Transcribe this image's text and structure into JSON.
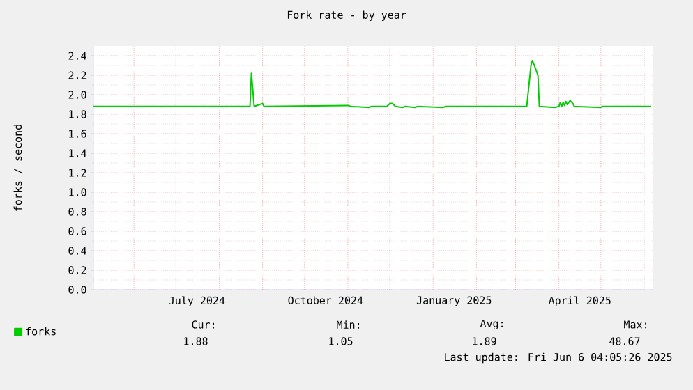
{
  "chart_data": {
    "type": "line",
    "title": "Fork rate - by year",
    "ylabel": "forks / second",
    "x": [
      "2024-05-03",
      "2024-08-23",
      "2024-08-24",
      "2024-08-26",
      "2024-09-01",
      "2024-09-02",
      "2024-11-01",
      "2024-11-03",
      "2024-11-16",
      "2024-11-18",
      "2024-11-29",
      "2024-12-01",
      "2024-12-03",
      "2024-12-05",
      "2024-12-10",
      "2024-12-12",
      "2024-12-19",
      "2024-12-21",
      "2025-01-08",
      "2025-01-10",
      "2025-03-09",
      "2025-03-12",
      "2025-03-13",
      "2025-03-15",
      "2025-03-17",
      "2025-03-18",
      "2025-03-29",
      "2025-04-01",
      "2025-04-02",
      "2025-04-03",
      "2025-04-04",
      "2025-04-05",
      "2025-04-06",
      "2025-04-07",
      "2025-04-09",
      "2025-04-11",
      "2025-04-12",
      "2025-05-01",
      "2025-05-02",
      "2025-06-06"
    ],
    "series": [
      {
        "name": "forks",
        "color": "#00cc00",
        "values": [
          1.88,
          1.88,
          2.22,
          1.88,
          1.91,
          1.88,
          1.89,
          1.88,
          1.87,
          1.88,
          1.88,
          1.91,
          1.91,
          1.88,
          1.87,
          1.88,
          1.87,
          1.88,
          1.87,
          1.88,
          1.88,
          2.3,
          2.35,
          2.28,
          2.2,
          1.88,
          1.87,
          1.88,
          1.92,
          1.88,
          1.92,
          1.89,
          1.93,
          1.9,
          1.94,
          1.91,
          1.88,
          1.87,
          1.88,
          1.88
        ]
      }
    ],
    "xlim": [
      "2024-05-03",
      "2025-06-07"
    ],
    "xticks": [
      {
        "value": "2024-06-01",
        "label": null
      },
      {
        "value": "2024-07-01",
        "label": null
      },
      {
        "value": "2024-07-16",
        "label": "July 2024"
      },
      {
        "value": "2024-08-01",
        "label": null
      },
      {
        "value": "2024-09-01",
        "label": null
      },
      {
        "value": "2024-10-01",
        "label": null
      },
      {
        "value": "2024-10-16",
        "label": "October 2024"
      },
      {
        "value": "2024-11-01",
        "label": null
      },
      {
        "value": "2024-12-01",
        "label": null
      },
      {
        "value": "2025-01-01",
        "label": null
      },
      {
        "value": "2025-01-16",
        "label": "January 2025"
      },
      {
        "value": "2025-02-01",
        "label": null
      },
      {
        "value": "2025-03-01",
        "label": null
      },
      {
        "value": "2025-04-01",
        "label": null
      },
      {
        "value": "2025-04-16",
        "label": "April 2025"
      },
      {
        "value": "2025-05-01",
        "label": null
      },
      {
        "value": "2025-06-01",
        "label": null
      }
    ],
    "ylim": [
      0,
      2.5
    ],
    "yticks": [
      {
        "value": 0,
        "label": "0.0"
      },
      {
        "value": 0.2,
        "label": "0.2"
      },
      {
        "value": 0.4,
        "label": "0.4"
      },
      {
        "value": 0.6,
        "label": "0.6"
      },
      {
        "value": 0.8,
        "label": "0.8"
      },
      {
        "value": 1.0,
        "label": "1.0"
      },
      {
        "value": 1.2,
        "label": "1.2"
      },
      {
        "value": 1.4,
        "label": "1.4"
      },
      {
        "value": 1.6,
        "label": "1.6"
      },
      {
        "value": 1.8,
        "label": "1.8"
      },
      {
        "value": 2.0,
        "label": "2.0"
      },
      {
        "value": 2.2,
        "label": "2.2"
      },
      {
        "value": 2.4,
        "label": "2.4"
      }
    ],
    "grid": true,
    "legend": "bottom left",
    "marker": "none",
    "line_style": "solid",
    "annotations": [
      "Cur:",
      "Min:",
      "Avg:",
      "Max:",
      "1.88",
      "1.05",
      "1.89",
      "48.67",
      "Last update: Fri Jun  6 04:05:26 2025"
    ]
  }
}
